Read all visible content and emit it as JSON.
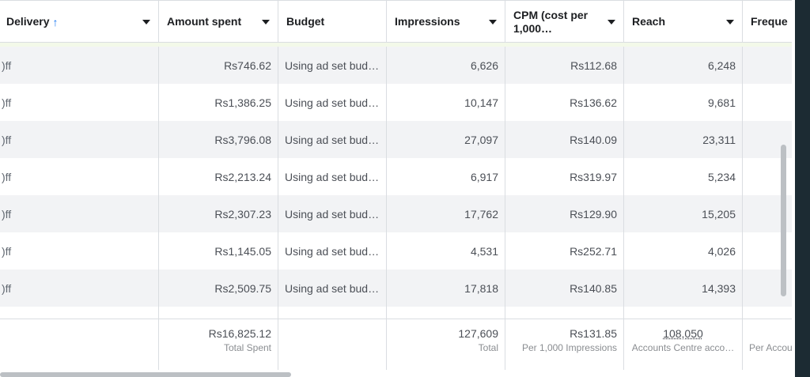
{
  "columns": [
    {
      "key": "delivery",
      "label": "Delivery",
      "sort_icon": "arrow-up-icon"
    },
    {
      "key": "amount_spent",
      "label": "Amount spent"
    },
    {
      "key": "budget",
      "label": "Budget"
    },
    {
      "key": "impressions",
      "label": "Impressions"
    },
    {
      "key": "cpm",
      "label": "CPM (cost per 1,000…"
    },
    {
      "key": "reach",
      "label": "Reach"
    },
    {
      "key": "frequency",
      "label": "Freque"
    }
  ],
  "rows": [
    {
      "delivery": ")ff",
      "amount_spent": "Rs746.62",
      "budget": "Using ad set bud…",
      "impressions": "6,626",
      "cpm": "Rs112.68",
      "reach": "6,248"
    },
    {
      "delivery": ")ff",
      "amount_spent": "Rs1,386.25",
      "budget": "Using ad set bud…",
      "impressions": "10,147",
      "cpm": "Rs136.62",
      "reach": "9,681"
    },
    {
      "delivery": ")ff",
      "amount_spent": "Rs3,796.08",
      "budget": "Using ad set bud…",
      "impressions": "27,097",
      "cpm": "Rs140.09",
      "reach": "23,311"
    },
    {
      "delivery": ")ff",
      "amount_spent": "Rs2,213.24",
      "budget": "Using ad set bud…",
      "impressions": "6,917",
      "cpm": "Rs319.97",
      "reach": "5,234"
    },
    {
      "delivery": ")ff",
      "amount_spent": "Rs2,307.23",
      "budget": "Using ad set bud…",
      "impressions": "17,762",
      "cpm": "Rs129.90",
      "reach": "15,205"
    },
    {
      "delivery": ")ff",
      "amount_spent": "Rs1,145.05",
      "budget": "Using ad set bud…",
      "impressions": "4,531",
      "cpm": "Rs252.71",
      "reach": "4,026"
    },
    {
      "delivery": ")ff",
      "amount_spent": "Rs2,509.75",
      "budget": "Using ad set bud…",
      "impressions": "17,818",
      "cpm": "Rs140.85",
      "reach": "14,393"
    }
  ],
  "totals": {
    "amount_spent": {
      "value": "Rs16,825.12",
      "label": "Total Spent"
    },
    "impressions": {
      "value": "127,609",
      "label": "Total"
    },
    "cpm": {
      "value": "Rs131.85",
      "label": "Per 1,000 Impressions"
    },
    "reach": {
      "value": "108,050",
      "label": "Accounts Centre acco…"
    },
    "frequency": {
      "value": "",
      "label": "Per Accou"
    }
  },
  "colors": {
    "accent": "#1877f2",
    "border": "#dadde1",
    "row_alt": "#f2f3f5"
  }
}
